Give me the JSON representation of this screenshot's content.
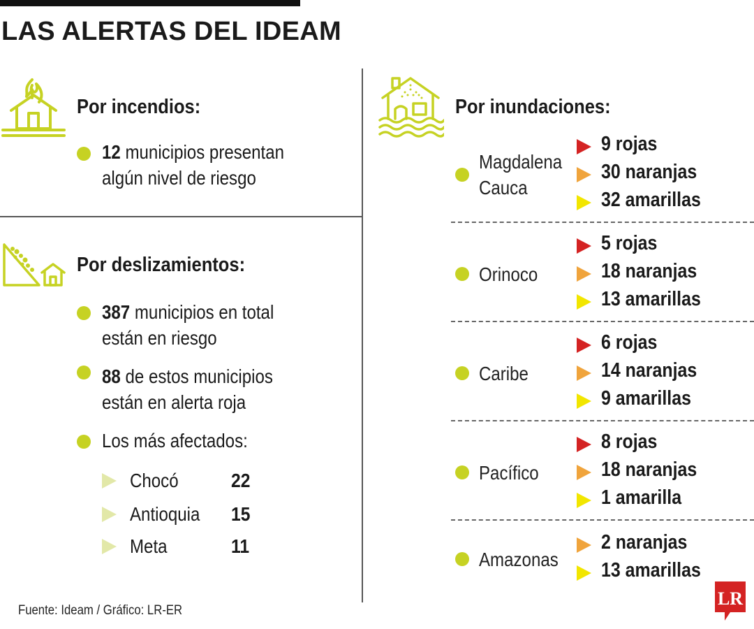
{
  "title": "LAS ALERTAS DEL IDEAM",
  "colors": {
    "accent": "#c6d223",
    "red": "#d42323",
    "orange": "#f0a43c",
    "yellow": "#f2e600",
    "pale": "#e2e8a8",
    "logo": "#d42323"
  },
  "incendios": {
    "icon": "house-fire-icon",
    "title": "Por incendios:",
    "bullet": {
      "num": "12",
      "text1": " municipios presentan",
      "text2": "algún nivel de riesgo"
    }
  },
  "deslizamientos": {
    "icon": "landslide-icon",
    "title": "Por deslizamientos:",
    "bullets": [
      {
        "num": "387",
        "text1": " municipios en total",
        "text2": "están en riesgo"
      },
      {
        "num": "88",
        "text1": " de estos municipios",
        "text2": "están en alerta roja"
      }
    ],
    "affected_label": "Los más afectados:",
    "affected": [
      {
        "name": "Chocó",
        "value": "22"
      },
      {
        "name": "Antioquia",
        "value": "15"
      },
      {
        "name": "Meta",
        "value": "11"
      }
    ]
  },
  "inundaciones": {
    "icon": "flooded-house-icon",
    "title": "Por inundaciones:",
    "regions": [
      {
        "name": "Magdalena\nCauca",
        "levels": [
          {
            "color": "red",
            "text": "9 rojas"
          },
          {
            "color": "orange",
            "text": "30 naranjas"
          },
          {
            "color": "yellow",
            "text": "32 amarillas"
          }
        ]
      },
      {
        "name": "Orinoco",
        "levels": [
          {
            "color": "red",
            "text": "5 rojas"
          },
          {
            "color": "orange",
            "text": "18 naranjas"
          },
          {
            "color": "yellow",
            "text": "13 amarillas"
          }
        ]
      },
      {
        "name": "Caribe",
        "levels": [
          {
            "color": "red",
            "text": "6 rojas"
          },
          {
            "color": "orange",
            "text": "14 naranjas"
          },
          {
            "color": "yellow",
            "text": "9 amarillas"
          }
        ]
      },
      {
        "name": "Pacífico",
        "levels": [
          {
            "color": "red",
            "text": "8 rojas"
          },
          {
            "color": "orange",
            "text": "18 naranjas"
          },
          {
            "color": "yellow",
            "text": "1 amarilla"
          }
        ]
      },
      {
        "name": "Amazonas",
        "levels": [
          {
            "color": "orange",
            "text": "2 naranjas"
          },
          {
            "color": "yellow",
            "text": "13 amarillas"
          }
        ]
      }
    ]
  },
  "source": "Fuente: Ideam / Gráfico: LR-ER",
  "logo_text": "LR"
}
